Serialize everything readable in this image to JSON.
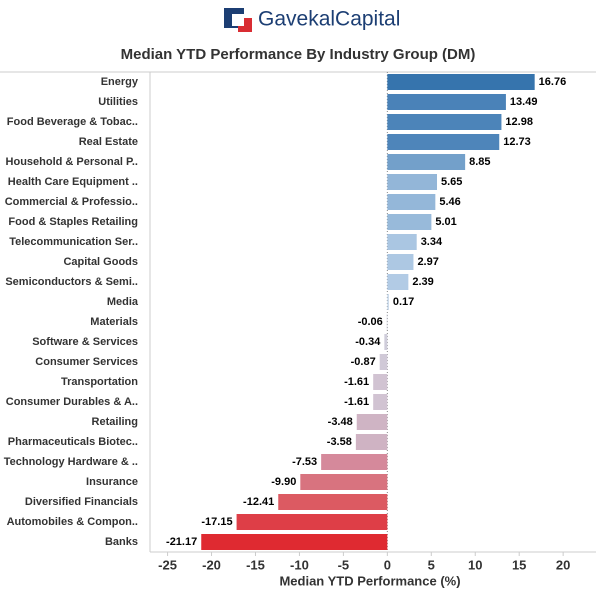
{
  "logo": "GavekalCapital",
  "chart_data": {
    "type": "hbar",
    "title": "Median YTD Performance By Industry Group (DM)",
    "x_label": "Median YTD Performance (%)",
    "categories": [
      "Energy",
      "Utilities",
      "Food Beverage & Tobac..",
      "Real Estate",
      "Household & Personal P..",
      "Health Care Equipment ..",
      "Commercial & Professio..",
      "Food & Staples Retailing",
      "Telecommunication Ser..",
      "Capital Goods",
      "Semiconductors & Semi..",
      "Media",
      "Materials",
      "Software & Services",
      "Consumer Services",
      "Transportation",
      "Consumer Durables & A..",
      "Retailing",
      "Pharmaceuticals Biotec..",
      "Technology Hardware & ..",
      "Insurance",
      "Diversified Financials",
      "Automobiles & Compon..",
      "Banks"
    ],
    "values": [
      16.76,
      13.49,
      12.98,
      12.73,
      8.85,
      5.65,
      5.46,
      5.01,
      3.34,
      2.97,
      2.39,
      0.17,
      -0.06,
      -0.34,
      -0.87,
      -1.61,
      -1.61,
      -3.48,
      -3.58,
      -7.53,
      -9.9,
      -12.41,
      -17.15,
      -21.17
    ],
    "value_labels": [
      "16.76",
      "13.49",
      "12.98",
      "12.73",
      "8.85",
      "5.65",
      "5.46",
      "5.01",
      "3.34",
      "2.97",
      "2.39",
      "0.17",
      "-0.06",
      "-0.34",
      "-0.87",
      "-1.61",
      "-1.61",
      "-3.48",
      "-3.58",
      "-7.53",
      "-9.90",
      "-12.41",
      "-17.15",
      "-21.17"
    ],
    "colors": [
      "#3674ad",
      "#4a82b8",
      "#4c84b9",
      "#4e85ba",
      "#73a0ca",
      "#93b6d8",
      "#94b7d9",
      "#98bada",
      "#aac6e2",
      "#adc8e3",
      "#b2cbe5",
      "#c5d6e8",
      "#cfd3e0",
      "#cfcdda",
      "#d0c9d7",
      "#d1c3d2",
      "#d1c3d2",
      "#cfb4c4",
      "#cfb3c3",
      "#d5899b",
      "#d8737f",
      "#dc5a62",
      "#de3e47",
      "#df2a31"
    ],
    "xlim": [
      -27,
      22.6
    ],
    "xticks": [
      -25,
      -20,
      -15,
      -10,
      -5,
      0,
      5,
      10,
      15,
      20
    ]
  }
}
